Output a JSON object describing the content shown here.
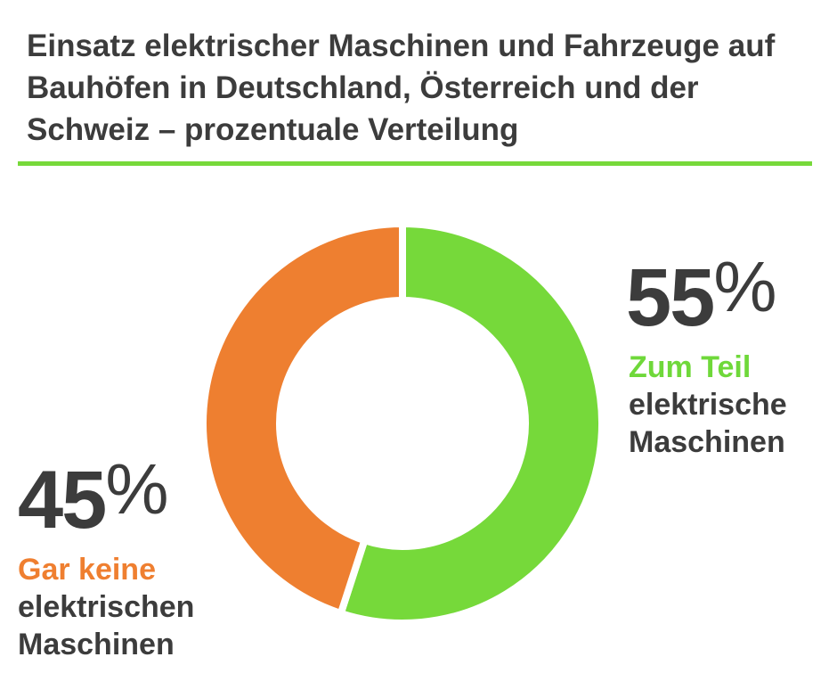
{
  "title": "Einsatz elektrischer Maschinen und Fahrzeuge auf Bauhöfen in Deutschland, Österreich und der Schweiz – prozentuale Verteilung",
  "colors": {
    "accent": "#77d93a",
    "partial": "#76d93a",
    "none": "#ee7f30",
    "text": "#3c3c3c"
  },
  "chart_data": {
    "type": "pie",
    "variant": "donut",
    "title": "Einsatz elektrischer Maschinen und Fahrzeuge auf Bauhöfen in Deutschland, Österreich und der Schweiz – prozentuale Verteilung",
    "slices": [
      {
        "value": 55,
        "value_label": "55",
        "unit": "%",
        "label_highlight": "Zum Teil",
        "label_rest_1": "elektrische",
        "label_rest_2": "Maschinen",
        "color": "#76d93a"
      },
      {
        "value": 45,
        "value_label": "45",
        "unit": "%",
        "label_highlight": "Gar keine",
        "label_rest_1": "elektrischen",
        "label_rest_2": "Maschinen",
        "color": "#ee7f30"
      }
    ]
  }
}
